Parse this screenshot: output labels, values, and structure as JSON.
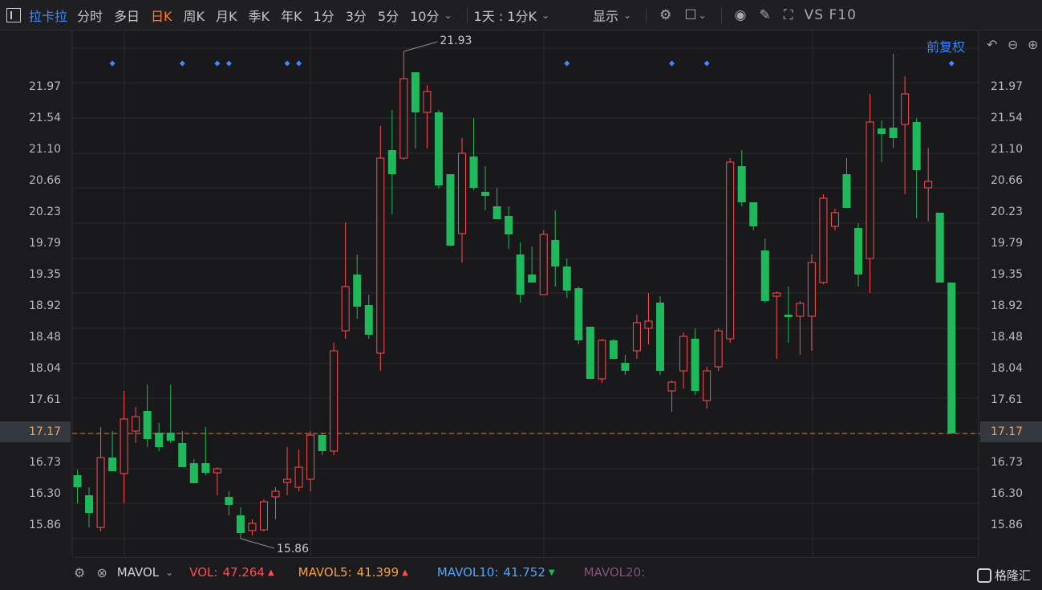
{
  "toolbar": {
    "stock_name": "拉卡拉",
    "periods": [
      "分时",
      "多日",
      "日K",
      "周K",
      "月K",
      "季K",
      "年K",
      "1分",
      "3分",
      "5分",
      "10分"
    ],
    "active_period": "日K",
    "combo": "1天 : 1分K",
    "display": "显示",
    "vs_label": "VS F10"
  },
  "adjustment": "前复权",
  "price_axis": {
    "labels": [
      "21.97",
      "21.54",
      "21.10",
      "20.66",
      "20.23",
      "19.79",
      "19.35",
      "18.92",
      "18.48",
      "18.04",
      "17.61",
      "17.17",
      "16.73",
      "16.30",
      "15.86"
    ],
    "current_price": "17.17"
  },
  "annotations": {
    "high_label": "21.93",
    "low_label": "15.86"
  },
  "volume_panel": {
    "indicator": "MAVOL",
    "vol_label": "VOL:",
    "vol_value": "47.264",
    "mavol5_label": "MAVOL5:",
    "mavol5_value": "41.399",
    "mavol10_label": "MAVOL10:",
    "mavol10_value": "41.752",
    "mavol20_label": "MAVOL20:"
  },
  "brand": "格隆汇",
  "colors": {
    "up": "#ff4d4f",
    "down": "#1fb85a",
    "accent": "#3d8bff",
    "current_line": "#f07b2a",
    "mavol5": "#ff9f3a",
    "mavol10": "#4aa8ff",
    "mavol20": "#8a4f7d"
  },
  "chart_data": {
    "type": "candlestick",
    "ylim": [
      15.64,
      22.19
    ],
    "y_ticks": [
      21.97,
      21.54,
      21.1,
      20.66,
      20.23,
      19.79,
      19.35,
      18.92,
      18.48,
      18.04,
      17.61,
      17.17,
      16.73,
      16.3,
      15.86
    ],
    "current_price": 17.17,
    "max_annotation": 21.93,
    "min_annotation": 15.86,
    "candles": [
      {
        "o": 16.65,
        "h": 16.72,
        "l": 16.3,
        "c": 16.5
      },
      {
        "o": 16.4,
        "h": 16.5,
        "l": 16.0,
        "c": 16.18
      },
      {
        "o": 16.0,
        "h": 17.25,
        "l": 15.95,
        "c": 16.87
      },
      {
        "o": 16.87,
        "h": 17.2,
        "l": 16.7,
        "c": 16.7
      },
      {
        "o": 16.67,
        "h": 17.7,
        "l": 16.3,
        "c": 17.35
      },
      {
        "o": 17.2,
        "h": 17.5,
        "l": 17.05,
        "c": 17.38
      },
      {
        "o": 17.45,
        "h": 17.78,
        "l": 17.0,
        "c": 17.1
      },
      {
        "o": 17.18,
        "h": 17.3,
        "l": 16.95,
        "c": 17.0
      },
      {
        "o": 17.18,
        "h": 17.78,
        "l": 17.05,
        "c": 17.08
      },
      {
        "o": 17.05,
        "h": 17.2,
        "l": 16.75,
        "c": 16.75
      },
      {
        "o": 16.8,
        "h": 16.85,
        "l": 16.55,
        "c": 16.55
      },
      {
        "o": 16.8,
        "h": 17.25,
        "l": 16.65,
        "c": 16.68
      },
      {
        "o": 16.68,
        "h": 16.75,
        "l": 16.4,
        "c": 16.73
      },
      {
        "o": 16.38,
        "h": 16.45,
        "l": 16.15,
        "c": 16.28
      },
      {
        "o": 16.15,
        "h": 16.25,
        "l": 15.86,
        "c": 15.93
      },
      {
        "o": 15.96,
        "h": 16.1,
        "l": 15.9,
        "c": 16.05
      },
      {
        "o": 15.97,
        "h": 16.35,
        "l": 15.95,
        "c": 16.32
      },
      {
        "o": 16.38,
        "h": 16.5,
        "l": 16.1,
        "c": 16.45
      },
      {
        "o": 16.56,
        "h": 17.0,
        "l": 16.4,
        "c": 16.6
      },
      {
        "o": 16.5,
        "h": 16.97,
        "l": 16.45,
        "c": 16.75
      },
      {
        "o": 16.6,
        "h": 17.2,
        "l": 16.45,
        "c": 17.15
      },
      {
        "o": 17.15,
        "h": 17.18,
        "l": 16.9,
        "c": 16.95
      },
      {
        "o": 16.95,
        "h": 18.3,
        "l": 16.9,
        "c": 18.2
      },
      {
        "o": 18.45,
        "h": 19.8,
        "l": 18.35,
        "c": 19.0
      },
      {
        "o": 19.15,
        "h": 19.4,
        "l": 18.6,
        "c": 18.75
      },
      {
        "o": 18.77,
        "h": 18.9,
        "l": 18.35,
        "c": 18.4
      },
      {
        "o": 18.17,
        "h": 21.0,
        "l": 17.95,
        "c": 20.6
      },
      {
        "o": 20.7,
        "h": 21.2,
        "l": 19.9,
        "c": 20.4
      },
      {
        "o": 20.6,
        "h": 21.93,
        "l": 20.58,
        "c": 21.59
      },
      {
        "o": 21.67,
        "h": 21.67,
        "l": 20.72,
        "c": 21.17
      },
      {
        "o": 21.17,
        "h": 21.51,
        "l": 20.72,
        "c": 21.43
      },
      {
        "o": 21.17,
        "h": 21.2,
        "l": 20.22,
        "c": 20.26
      },
      {
        "o": 20.4,
        "h": 20.4,
        "l": 19.5,
        "c": 19.51
      },
      {
        "o": 19.66,
        "h": 20.85,
        "l": 19.3,
        "c": 20.66
      },
      {
        "o": 20.62,
        "h": 21.1,
        "l": 20.2,
        "c": 20.23
      },
      {
        "o": 20.18,
        "h": 20.5,
        "l": 19.95,
        "c": 20.13
      },
      {
        "o": 20.0,
        "h": 20.23,
        "l": 19.84,
        "c": 19.84
      },
      {
        "o": 19.88,
        "h": 20.0,
        "l": 19.47,
        "c": 19.65
      },
      {
        "o": 19.4,
        "h": 19.55,
        "l": 18.8,
        "c": 18.9
      },
      {
        "o": 19.15,
        "h": 19.5,
        "l": 19.05,
        "c": 19.05
      },
      {
        "o": 18.9,
        "h": 19.7,
        "l": 18.9,
        "c": 19.65
      },
      {
        "o": 19.58,
        "h": 19.95,
        "l": 19.0,
        "c": 19.25
      },
      {
        "o": 19.25,
        "h": 19.35,
        "l": 18.86,
        "c": 18.95
      },
      {
        "o": 18.98,
        "h": 19.0,
        "l": 18.28,
        "c": 18.33
      },
      {
        "o": 18.5,
        "h": 18.5,
        "l": 17.85,
        "c": 17.85
      },
      {
        "o": 17.85,
        "h": 18.35,
        "l": 17.8,
        "c": 18.33
      },
      {
        "o": 18.33,
        "h": 18.35,
        "l": 18.1,
        "c": 18.1
      },
      {
        "o": 18.05,
        "h": 18.15,
        "l": 17.9,
        "c": 17.95
      },
      {
        "o": 18.2,
        "h": 18.65,
        "l": 18.1,
        "c": 18.55
      },
      {
        "o": 18.48,
        "h": 18.92,
        "l": 18.28,
        "c": 18.57
      },
      {
        "o": 18.8,
        "h": 18.88,
        "l": 17.9,
        "c": 17.95
      },
      {
        "o": 17.7,
        "h": 17.83,
        "l": 17.44,
        "c": 17.81
      },
      {
        "o": 17.95,
        "h": 18.43,
        "l": 17.73,
        "c": 18.38
      },
      {
        "o": 18.35,
        "h": 18.48,
        "l": 17.65,
        "c": 17.7
      },
      {
        "o": 17.58,
        "h": 18.0,
        "l": 17.48,
        "c": 17.95
      },
      {
        "o": 18.0,
        "h": 18.48,
        "l": 17.95,
        "c": 18.45
      },
      {
        "o": 18.35,
        "h": 20.6,
        "l": 18.3,
        "c": 20.55
      },
      {
        "o": 20.5,
        "h": 20.7,
        "l": 20.0,
        "c": 20.05
      },
      {
        "o": 20.05,
        "h": 20.05,
        "l": 19.7,
        "c": 19.75
      },
      {
        "o": 19.45,
        "h": 19.6,
        "l": 18.8,
        "c": 18.82
      },
      {
        "o": 18.88,
        "h": 18.94,
        "l": 18.1,
        "c": 18.92
      },
      {
        "o": 18.65,
        "h": 19.0,
        "l": 18.3,
        "c": 18.62
      },
      {
        "o": 18.63,
        "h": 18.82,
        "l": 18.15,
        "c": 18.79
      },
      {
        "o": 18.63,
        "h": 19.4,
        "l": 18.2,
        "c": 19.3
      },
      {
        "o": 19.05,
        "h": 20.15,
        "l": 19.03,
        "c": 20.1
      },
      {
        "o": 19.75,
        "h": 19.97,
        "l": 19.7,
        "c": 19.92
      },
      {
        "o": 20.4,
        "h": 20.6,
        "l": 19.98,
        "c": 19.98
      },
      {
        "o": 19.73,
        "h": 19.79,
        "l": 19.0,
        "c": 19.15
      },
      {
        "o": 19.35,
        "h": 21.4,
        "l": 18.92,
        "c": 21.05
      },
      {
        "o": 20.97,
        "h": 21.07,
        "l": 20.55,
        "c": 20.9
      },
      {
        "o": 20.98,
        "h": 21.9,
        "l": 20.73,
        "c": 20.85
      },
      {
        "o": 21.02,
        "h": 21.62,
        "l": 20.15,
        "c": 21.4
      },
      {
        "o": 21.05,
        "h": 21.1,
        "l": 19.85,
        "c": 20.45
      },
      {
        "o": 20.23,
        "h": 20.73,
        "l": 19.81,
        "c": 20.31
      },
      {
        "o": 19.92,
        "h": 19.92,
        "l": 19.05,
        "c": 19.05
      },
      {
        "o": 19.05,
        "h": 19.05,
        "l": 17.17,
        "c": 17.17
      }
    ],
    "marker_candle_indices": [
      3,
      9,
      12,
      13,
      18,
      19,
      42,
      51,
      54,
      75
    ]
  }
}
